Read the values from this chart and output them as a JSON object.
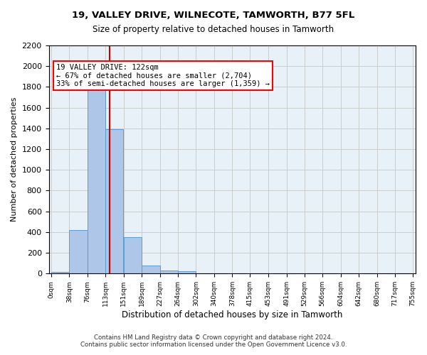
{
  "title": "19, VALLEY DRIVE, WILNECOTE, TAMWORTH, B77 5FL",
  "subtitle": "Size of property relative to detached houses in Tamworth",
  "xlabel": "Distribution of detached houses by size in Tamworth",
  "ylabel": "Number of detached properties",
  "property_size": 122,
  "annotation_text": "19 VALLEY DRIVE: 122sqm\n← 67% of detached houses are smaller (2,704)\n33% of semi-detached houses are larger (1,359) →",
  "bar_left_edges": [
    0,
    38,
    76,
    113,
    151,
    189,
    227,
    264,
    302,
    340,
    378,
    415,
    453,
    491,
    529,
    566,
    604,
    642,
    680,
    717
  ],
  "bar_width": 37.7,
  "bar_heights": [
    15,
    420,
    1810,
    1395,
    350,
    80,
    30,
    20,
    0,
    0,
    0,
    0,
    0,
    0,
    0,
    0,
    0,
    0,
    0,
    0
  ],
  "tick_labels": [
    "0sqm",
    "38sqm",
    "76sqm",
    "113sqm",
    "151sqm",
    "189sqm",
    "227sqm",
    "264sqm",
    "302sqm",
    "340sqm",
    "378sqm",
    "415sqm",
    "453sqm",
    "491sqm",
    "529sqm",
    "566sqm",
    "604sqm",
    "642sqm",
    "680sqm",
    "717sqm",
    "755sqm"
  ],
  "bar_color": "#aec6e8",
  "bar_edge_color": "#5b9bd5",
  "vline_color": "#cc0000",
  "vline_x": 122,
  "ylim": [
    0,
    2200
  ],
  "yticks": [
    0,
    200,
    400,
    600,
    800,
    1000,
    1200,
    1400,
    1600,
    1800,
    2000,
    2200
  ],
  "grid_color": "#cccccc",
  "bg_color": "#e8f0f8",
  "footer_line1": "Contains HM Land Registry data © Crown copyright and database right 2024.",
  "footer_line2": "Contains public sector information licensed under the Open Government Licence v3.0."
}
